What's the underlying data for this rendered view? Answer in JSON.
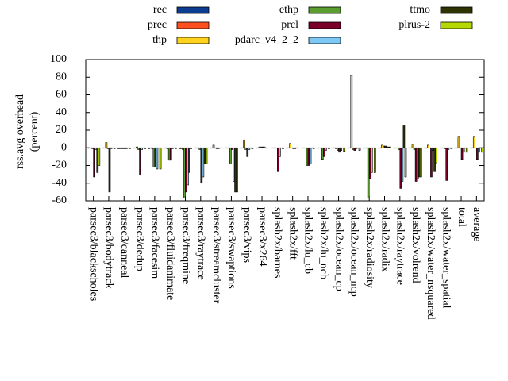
{
  "chart_data": {
    "type": "bar",
    "ylabel": [
      "rss.avg overhead",
      "(percent)"
    ],
    "categories": [
      "parsec3/blackscholes",
      "parsec3/bodytrack",
      "parsec3/canneal",
      "parsec3/dedup",
      "parsec3/facesim",
      "parsec3/fluidanimate",
      "parsec3/freqmine",
      "parsec3/raytrace",
      "parsec3/streamcluster",
      "parsec3/swaptions",
      "parsec3/vips",
      "parsec3/x264",
      "splash2x/barnes",
      "splash2x/fft",
      "splash2x/lu_cb",
      "splash2x/lu_ncb",
      "splash2x/ocean_cp",
      "splash2x/ocean_ncp",
      "splash2x/radiosity",
      "splash2x/radix",
      "splash2x/raytrace",
      "splash2x/volrend",
      "splash2x/water_nsquared",
      "splash2x/water_spatial",
      "total",
      "average"
    ],
    "series": [
      {
        "name": "rec",
        "color": "#0b3d91",
        "values": [
          0,
          0,
          -1,
          0,
          -1,
          0,
          -1,
          0,
          0,
          0,
          0,
          0,
          0,
          0,
          0,
          0,
          0,
          0,
          0,
          0,
          0,
          0,
          0,
          0,
          0,
          0
        ]
      },
      {
        "name": "prec",
        "color": "#ff4f1f",
        "values": [
          0,
          0,
          -1,
          0,
          0,
          0,
          -1,
          0,
          0,
          0,
          0,
          0,
          0,
          0,
          0,
          0,
          0,
          0,
          0,
          0,
          0,
          0,
          0,
          0,
          0,
          0
        ]
      },
      {
        "name": "thp",
        "color": "#ffd21f",
        "values": [
          0,
          6,
          -1,
          1,
          -1,
          -1,
          -2,
          0,
          3,
          0,
          9,
          1,
          0,
          5,
          0,
          0,
          -1,
          82,
          0,
          3,
          0,
          4,
          3,
          0,
          13,
          13
        ]
      },
      {
        "name": "ethp",
        "color": "#5a9e2f",
        "values": [
          -1,
          -1,
          -1,
          -2,
          -22,
          -14,
          -57,
          -2,
          0,
          -18,
          -2,
          1,
          0,
          0,
          -20,
          -13,
          -3,
          -2,
          -57,
          2,
          -2,
          -2,
          0,
          -1,
          0,
          0
        ]
      },
      {
        "name": "prcl",
        "color": "#7a0027",
        "values": [
          -33,
          -50,
          -1,
          -31,
          -22,
          -14,
          -50,
          -40,
          -1,
          -2,
          -10,
          1,
          -27,
          -1,
          -20,
          -10,
          -5,
          -3,
          -35,
          2,
          -46,
          -38,
          -33,
          -37,
          -13,
          -13
        ]
      },
      {
        "name": "pdarc_v4_2_2",
        "color": "#7ec8f5",
        "values": [
          -2,
          -1,
          -1,
          -2,
          -24,
          -1,
          -42,
          -33,
          -1,
          -38,
          -2,
          1,
          -10,
          -1,
          -18,
          -3,
          -3,
          -1,
          -28,
          1,
          -38,
          -35,
          -3,
          -2,
          -5,
          -5
        ]
      },
      {
        "name": "ttmo",
        "color": "#2e3300",
        "values": [
          -28,
          0,
          0,
          0,
          0,
          0,
          -28,
          -18,
          0,
          -50,
          0,
          0,
          0,
          0,
          0,
          0,
          0,
          0,
          0,
          1,
          25,
          -33,
          -27,
          0,
          0,
          0
        ]
      },
      {
        "name": "plrus-2",
        "color": "#b5d900",
        "values": [
          -20,
          -1,
          -1,
          -1,
          -24,
          -1,
          -1,
          -18,
          0,
          -50,
          -1,
          0,
          -1,
          0,
          -1,
          -1,
          -4,
          -3,
          -28,
          1,
          -33,
          -33,
          -17,
          -1,
          -5,
          -5
        ]
      }
    ],
    "ylim": [
      -60,
      100
    ],
    "yticks": [
      -60,
      -40,
      -20,
      0,
      20,
      40,
      60,
      80,
      100
    ]
  }
}
